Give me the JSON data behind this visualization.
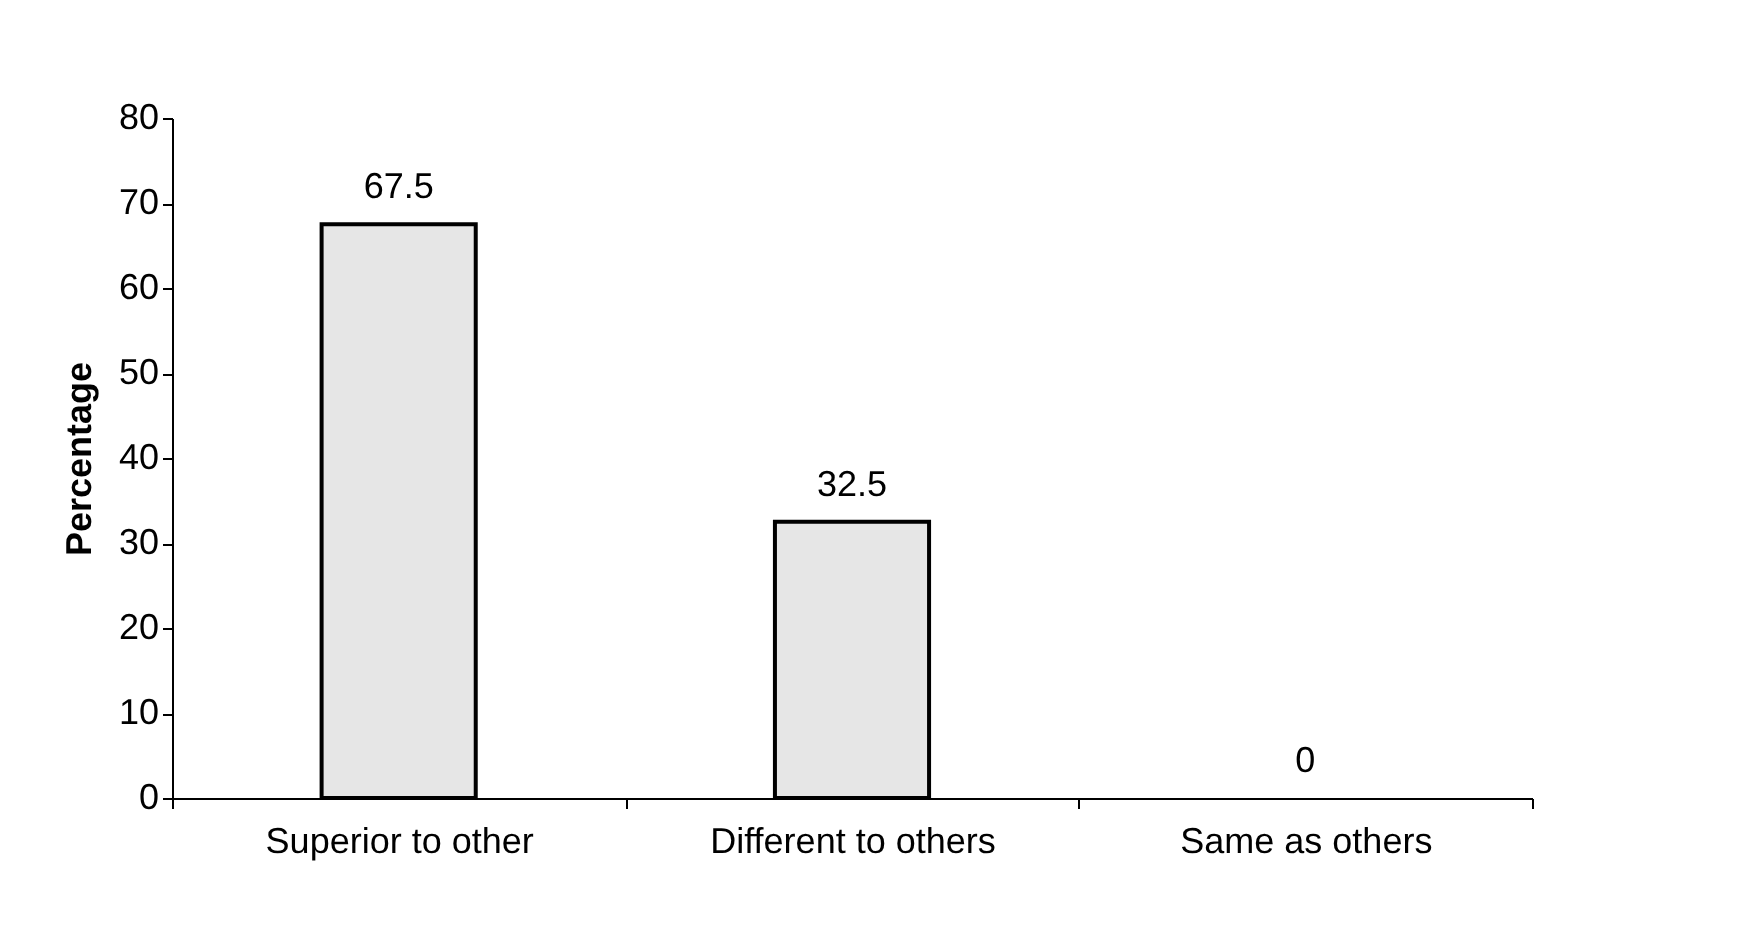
{
  "chart_data": {
    "type": "bar",
    "ylabel": "Percentage",
    "categories": [
      "Superior to other",
      "Different to others",
      "Same as others"
    ],
    "values": [
      67.5,
      32.5,
      0
    ],
    "color": "#e6e6e6",
    "ylim": [
      0,
      80
    ],
    "yticks": [
      0,
      10,
      20,
      30,
      40,
      50,
      60,
      70,
      80
    ],
    "grid": false,
    "data_labels": true
  }
}
